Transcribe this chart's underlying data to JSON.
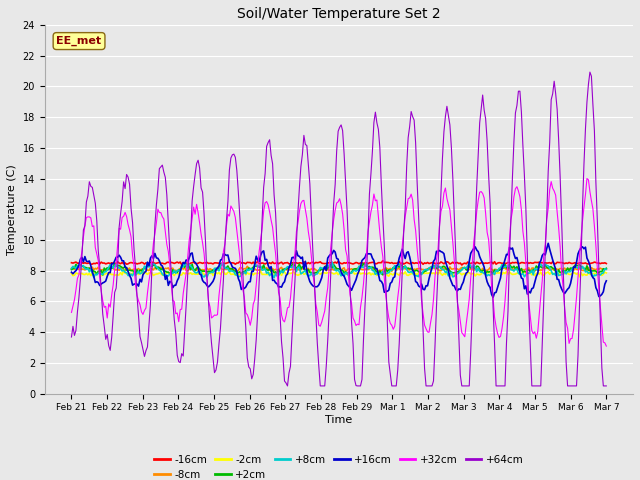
{
  "title": "Soil/Water Temperature Set 2",
  "xlabel": "Time",
  "ylabel": "Temperature (C)",
  "annotation": "EE_met",
  "annotation_color": "#8B0000",
  "annotation_bg": "#FFFF99",
  "ylim": [
    0,
    24
  ],
  "yticks": [
    0,
    2,
    4,
    6,
    8,
    10,
    12,
    14,
    16,
    18,
    20,
    22,
    24
  ],
  "bg_color": "#E8E8E8",
  "series": [
    {
      "label": "-16cm",
      "color": "#FF0000"
    },
    {
      "label": "-8cm",
      "color": "#FF8C00"
    },
    {
      "label": "-2cm",
      "color": "#FFFF00"
    },
    {
      "label": "+2cm",
      "color": "#00BB00"
    },
    {
      "label": "+8cm",
      "color": "#00CCCC"
    },
    {
      "label": "+16cm",
      "color": "#0000CD"
    },
    {
      "label": "+32cm",
      "color": "#FF00FF"
    },
    {
      "label": "+64cm",
      "color": "#9900CC"
    }
  ]
}
